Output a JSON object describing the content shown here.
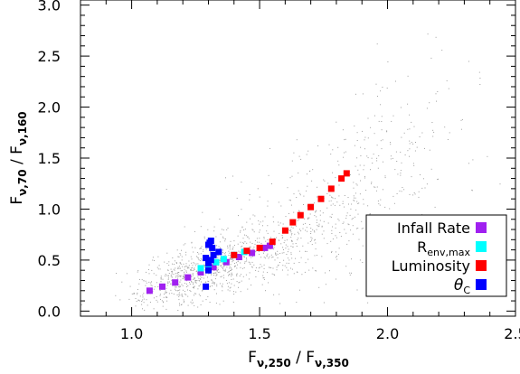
{
  "chart_data": {
    "type": "scatter",
    "title": "",
    "xlabel": "Fν,250 / Fν,350",
    "ylabel": "Fν,70 / Fν,160",
    "xlabel_parts": {
      "f1": "F",
      "s1": "ν,250",
      "sep": " / ",
      "f2": "F",
      "s2": "ν,350"
    },
    "ylabel_parts": {
      "f1": "F",
      "s1": "ν,70",
      "sep": " / ",
      "f2": "F",
      "s2": "ν,160"
    },
    "xlim": [
      0.8,
      2.5
    ],
    "ylim": [
      -0.05,
      3.05
    ],
    "xticks": [
      1.0,
      1.5,
      2.0,
      2.5
    ],
    "xtick_labels": [
      "1.0",
      "1.5",
      "2.0",
      "2.5"
    ],
    "yticks": [
      0.0,
      0.5,
      1.0,
      1.5,
      2.0,
      2.5,
      3.0
    ],
    "ytick_labels": [
      "0.0",
      "0.5",
      "1.0",
      "1.5",
      "2.0",
      "2.5",
      "3.0"
    ],
    "grid": false,
    "legend_position": "bottom-right",
    "background_points": {
      "color": "#a0a0a0",
      "description_count": 1400,
      "clusters": [
        {
          "cx": 1.22,
          "cy": 0.35,
          "sx": 0.12,
          "sy": 0.13,
          "weight": 0.35
        },
        {
          "cx": 1.45,
          "cy": 0.55,
          "sx": 0.18,
          "sy": 0.2,
          "weight": 0.3
        },
        {
          "cx": 1.75,
          "cy": 0.95,
          "sx": 0.22,
          "sy": 0.35,
          "weight": 0.25
        },
        {
          "cx": 2.05,
          "cy": 1.6,
          "sx": 0.18,
          "sy": 0.5,
          "weight": 0.1
        }
      ]
    },
    "series": [
      {
        "name": "Infall Rate",
        "color": "#a020f0",
        "x": [
          1.07,
          1.12,
          1.17,
          1.22,
          1.27,
          1.32,
          1.37,
          1.42,
          1.47,
          1.52,
          1.54
        ],
        "y": [
          0.2,
          0.24,
          0.28,
          0.33,
          0.38,
          0.43,
          0.48,
          0.53,
          0.57,
          0.62,
          0.64
        ]
      },
      {
        "name": "R",
        "name_sub": "env,max",
        "color": "#00ffff",
        "x": [
          1.27,
          1.3,
          1.33,
          1.36,
          1.4,
          1.44
        ],
        "y": [
          0.42,
          0.45,
          0.48,
          0.51,
          0.55,
          0.58
        ]
      },
      {
        "name": "Luminosity",
        "color": "#ff0000",
        "x": [
          1.4,
          1.45,
          1.5,
          1.55,
          1.6,
          1.63,
          1.66,
          1.7,
          1.74,
          1.78,
          1.82,
          1.84
        ],
        "y": [
          0.55,
          0.59,
          0.62,
          0.68,
          0.79,
          0.87,
          0.94,
          1.02,
          1.1,
          1.2,
          1.3,
          1.35
        ]
      },
      {
        "name": "θ",
        "name_sub": "C",
        "color": "#0000ff",
        "x": [
          1.3,
          1.305,
          1.31,
          1.315,
          1.32,
          1.29,
          1.3,
          1.34,
          1.3,
          1.29,
          1.31
        ],
        "y": [
          0.65,
          0.67,
          0.69,
          0.62,
          0.55,
          0.52,
          0.47,
          0.58,
          0.4,
          0.24,
          0.5
        ]
      }
    ]
  }
}
